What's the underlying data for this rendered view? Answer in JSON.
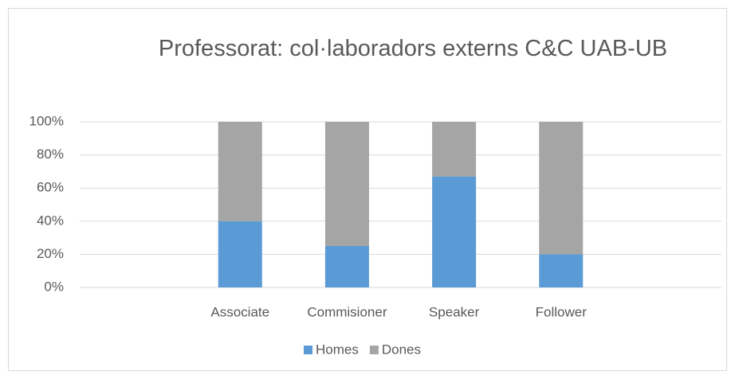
{
  "chart_data": {
    "type": "bar",
    "stacked": true,
    "title": "Professorat: col·laboradors externs C&C UAB-UB",
    "categories": [
      null,
      "Associate",
      "Commisioner",
      "Speaker",
      "Follower",
      null
    ],
    "series": [
      {
        "name": "Homes",
        "color": "#5b9bd5",
        "values": [
          null,
          40,
          25,
          67,
          20,
          null
        ]
      },
      {
        "name": "Dones",
        "color": "#a5a5a5",
        "values": [
          null,
          60,
          75,
          33,
          80,
          null
        ]
      }
    ],
    "ylim": [
      0,
      100
    ],
    "yticks": [
      {
        "value": 0,
        "label": "0%"
      },
      {
        "value": 20,
        "label": "20%"
      },
      {
        "value": 40,
        "label": "40%"
      },
      {
        "value": 60,
        "label": "60%"
      },
      {
        "value": 80,
        "label": "80%"
      },
      {
        "value": 100,
        "label": "100%"
      }
    ],
    "grid": true,
    "legend": "bottom"
  }
}
